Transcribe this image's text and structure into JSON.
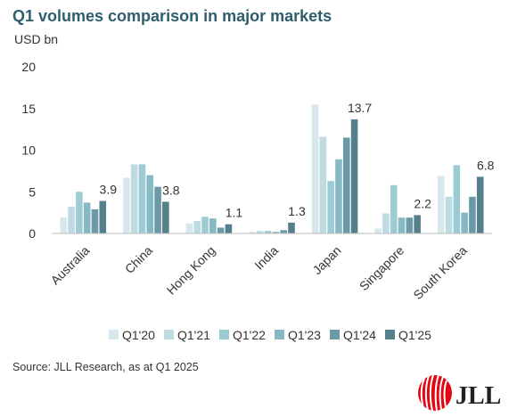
{
  "title": "Q1 volumes comparison in major markets",
  "unit_label": "USD bn",
  "source": "Source: JLL Research, as at Q1 2025",
  "logo_text": "JLL",
  "colors": {
    "Q1'20": "#d6e8ec",
    "Q1'21": "#bfdbe2",
    "Q1'22": "#9ccbd4",
    "Q1'23": "#86b9c3",
    "Q1'24": "#6b9aa6",
    "Q1'25": "#557f8b",
    "logo_red": "#e30613"
  },
  "chart_data": {
    "type": "bar",
    "categories": [
      "Australia",
      "China",
      "Hong Kong",
      "India",
      "Japan",
      "Singapore",
      "South Korea"
    ],
    "series": [
      {
        "name": "Q1'20",
        "values": [
          1.9,
          6.7,
          1.2,
          0.2,
          15.5,
          0.6,
          6.9
        ]
      },
      {
        "name": "Q1'21",
        "values": [
          3.2,
          8.3,
          1.5,
          0.3,
          11.6,
          2.4,
          4.4
        ]
      },
      {
        "name": "Q1'22",
        "values": [
          5.0,
          8.3,
          2.0,
          0.3,
          6.3,
          5.8,
          8.2
        ]
      },
      {
        "name": "Q1'23",
        "values": [
          3.7,
          7.0,
          1.8,
          0.2,
          8.9,
          1.9,
          2.5
        ]
      },
      {
        "name": "Q1'24",
        "values": [
          2.9,
          5.6,
          0.7,
          0.4,
          11.5,
          1.9,
          4.4
        ]
      },
      {
        "name": "Q1'25",
        "values": [
          3.9,
          3.8,
          1.1,
          1.3,
          13.7,
          2.2,
          6.8
        ]
      }
    ],
    "data_labels": [
      "3.9",
      "3.8",
      "1.1",
      "1.3",
      "13.7",
      "2.2",
      "6.8"
    ],
    "yticks": [
      "0",
      "5",
      "10",
      "15",
      "20"
    ],
    "ylim": [
      0,
      20
    ],
    "grid": false,
    "legend_position": "bottom"
  }
}
